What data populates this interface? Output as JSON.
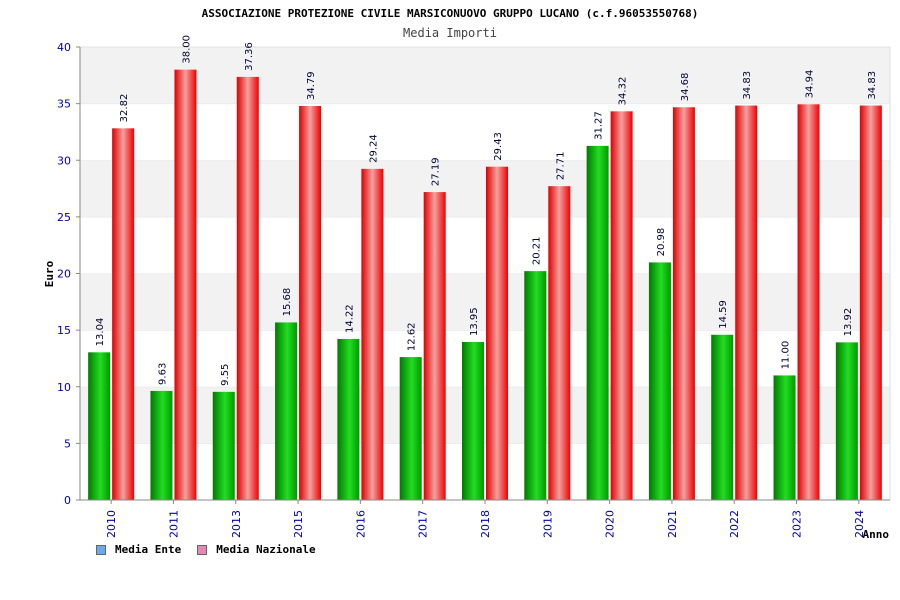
{
  "chart_data": {
    "type": "bar",
    "title": "ASSOCIAZIONE PROTEZIONE CIVILE MARSICONUOVO GRUPPO LUCANO (c.f.96053550768)",
    "subtitle": "Media Importi",
    "xlabel": "Anno",
    "ylabel": "Euro",
    "ylim": [
      0,
      40
    ],
    "yticks": [
      0,
      5,
      10,
      15,
      20,
      25,
      30,
      35,
      40
    ],
    "grid": true,
    "categories": [
      "2010",
      "2011",
      "2013",
      "2015",
      "2016",
      "2017",
      "2018",
      "2019",
      "2020",
      "2021",
      "2022",
      "2023",
      "2024"
    ],
    "series": [
      {
        "name": "Media Ente",
        "values": [
          13.04,
          9.63,
          9.55,
          15.68,
          14.22,
          12.62,
          13.95,
          20.21,
          31.27,
          20.98,
          14.59,
          11.0,
          13.92
        ],
        "labels": [
          "13.04",
          "9.63",
          "9.55",
          "15.68",
          "14.22",
          "12.62",
          "13.95",
          "20.21",
          "31.27",
          "20.98",
          "14.59",
          "11.00",
          "13.92"
        ]
      },
      {
        "name": "Media Nazionale",
        "values": [
          32.82,
          38.0,
          37.36,
          34.79,
          29.24,
          27.19,
          29.43,
          27.71,
          34.32,
          34.68,
          34.83,
          34.94,
          34.83
        ],
        "labels": [
          "32.82",
          "38.00",
          "37.36",
          "34.79",
          "29.24",
          "27.19",
          "29.43",
          "27.71",
          "34.32",
          "34.68",
          "34.83",
          "34.94",
          "34.83"
        ]
      }
    ],
    "colors": {
      "ente_dark": "#007a00",
      "ente_light": "#22dd22",
      "naz_dark": "#dd0000",
      "naz_light": "#f4a0a0",
      "band": "#f2f2f2",
      "axis_text": "#0000aa",
      "legend_ente": "#6ca8ee",
      "legend_naz": "#e488b8"
    }
  }
}
